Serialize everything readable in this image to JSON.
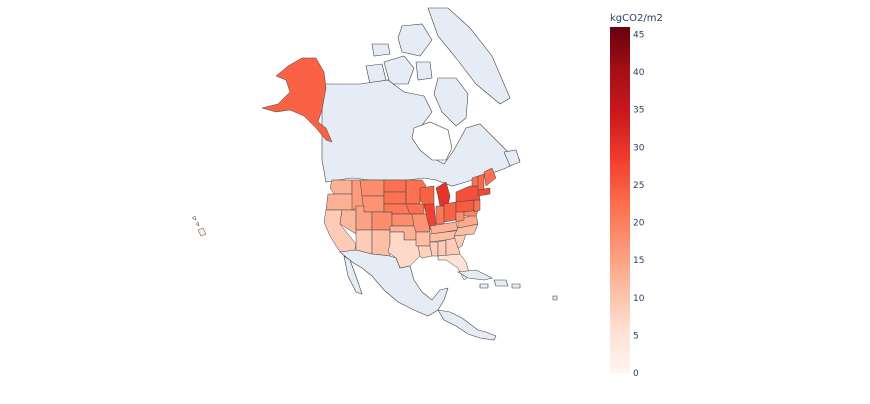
{
  "map": {
    "colorbar": {
      "title": "kgCO2/m2",
      "min": 0,
      "max": 46,
      "ticks": [
        "0",
        "5",
        "10",
        "15",
        "20",
        "25",
        "30",
        "35",
        "40",
        "45"
      ],
      "colorscale": [
        "#fff5f0",
        "#fee0d2",
        "#fcbba1",
        "#fc9272",
        "#fb6a4a",
        "#ef3b2c",
        "#cb181d",
        "#a50f15",
        "#67000d"
      ]
    },
    "colors": {
      "land": "#e5ecf6",
      "border": "#444444"
    },
    "regions": [
      {
        "name": "Alaska",
        "value": 24
      },
      {
        "name": "Washington",
        "value": 13
      },
      {
        "name": "Oregon",
        "value": 13
      },
      {
        "name": "California",
        "value": 9
      },
      {
        "name": "Idaho",
        "value": 16
      },
      {
        "name": "Montana",
        "value": 18
      },
      {
        "name": "North Dakota",
        "value": 22
      },
      {
        "name": "Minnesota",
        "value": 22
      },
      {
        "name": "Wisconsin",
        "value": 24
      },
      {
        "name": "Michigan",
        "value": 30
      },
      {
        "name": "Illinois",
        "value": 28
      },
      {
        "name": "Indiana",
        "value": 21
      },
      {
        "name": "Ohio",
        "value": 24
      },
      {
        "name": "Pennsylvania",
        "value": 25
      },
      {
        "name": "New York",
        "value": 26
      },
      {
        "name": "Vermont",
        "value": 22
      },
      {
        "name": "New Hampshire",
        "value": 23
      },
      {
        "name": "Maine",
        "value": 22
      },
      {
        "name": "Massachusetts",
        "value": 27
      },
      {
        "name": "Nevada",
        "value": 12
      },
      {
        "name": "Utah",
        "value": 15
      },
      {
        "name": "Arizona",
        "value": 9
      },
      {
        "name": "New Mexico",
        "value": 11
      },
      {
        "name": "Wyoming",
        "value": 17
      },
      {
        "name": "Colorado",
        "value": 18
      },
      {
        "name": "South Dakota",
        "value": 22
      },
      {
        "name": "Nebraska",
        "value": 21
      },
      {
        "name": "Kansas",
        "value": 18
      },
      {
        "name": "Oklahoma",
        "value": 13
      },
      {
        "name": "Texas",
        "value": 7
      },
      {
        "name": "Iowa",
        "value": 22
      },
      {
        "name": "Missouri",
        "value": 17
      },
      {
        "name": "Arkansas",
        "value": 11
      },
      {
        "name": "Louisiana",
        "value": 8
      },
      {
        "name": "Kentucky",
        "value": 13
      },
      {
        "name": "Tennessee",
        "value": 11
      },
      {
        "name": "Mississippi",
        "value": 9
      },
      {
        "name": "Alabama",
        "value": 9
      },
      {
        "name": "Georgia",
        "value": 9
      },
      {
        "name": "Florida",
        "value": 5
      },
      {
        "name": "South Carolina",
        "value": 9
      },
      {
        "name": "North Carolina",
        "value": 11
      },
      {
        "name": "Virginia",
        "value": 14
      },
      {
        "name": "West Virginia",
        "value": 18
      },
      {
        "name": "Maryland",
        "value": 19
      },
      {
        "name": "New Jersey",
        "value": 22
      },
      {
        "name": "Hawaii",
        "value": 2
      }
    ]
  }
}
